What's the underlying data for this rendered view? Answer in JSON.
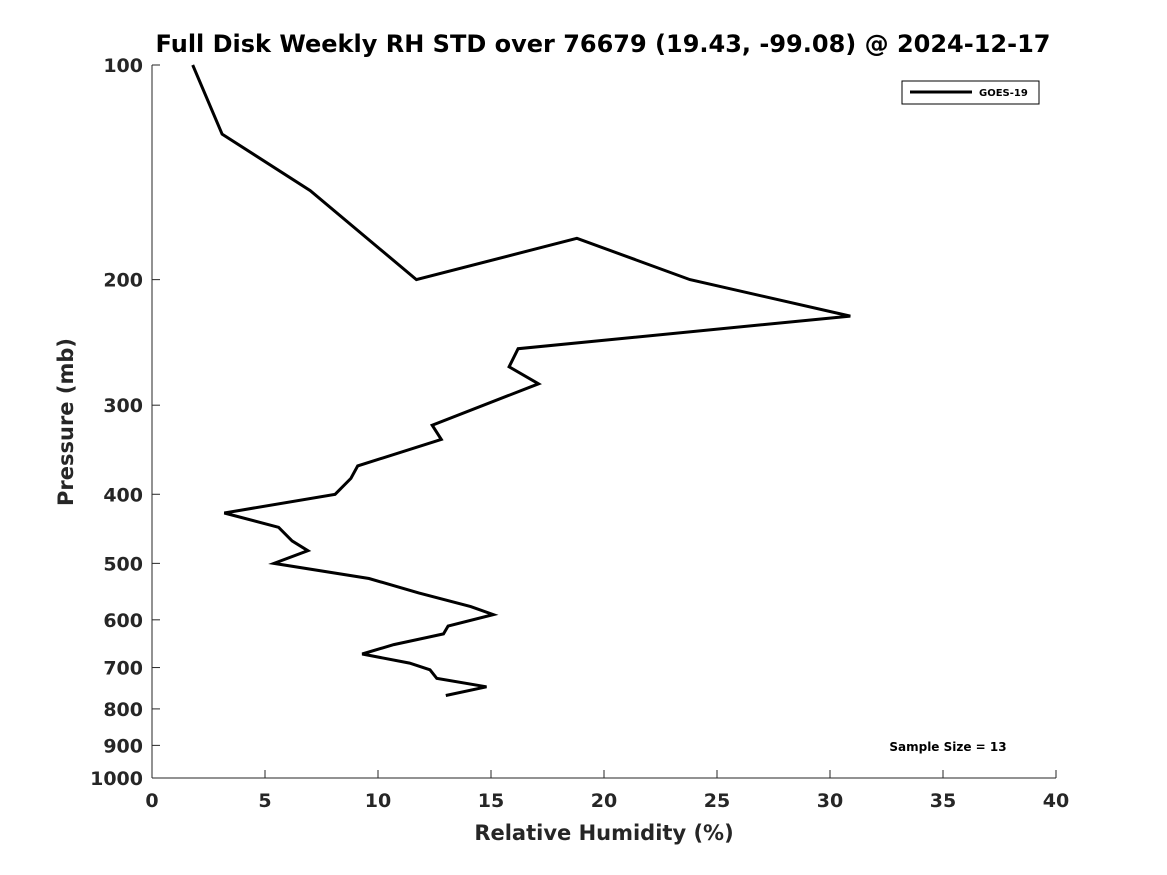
{
  "chart_data": {
    "type": "line",
    "title": "Full Disk Weekly RH STD over 76679 (19.43, -99.08) @ 2024-12-17",
    "xlabel": "Relative Humidity (%)",
    "ylabel": "Pressure (mb)",
    "xlim": [
      0,
      40
    ],
    "ylim": [
      1000,
      100
    ],
    "y_scale": "log",
    "y_reversed": true,
    "x_ticks": [
      0,
      5,
      10,
      15,
      20,
      25,
      30,
      35,
      40
    ],
    "y_ticks": [
      100,
      200,
      300,
      400,
      500,
      600,
      700,
      800,
      900,
      1000
    ],
    "grid": false,
    "legend_position": "top-right",
    "annotation": "Sample Size = 13",
    "series": [
      {
        "name": "GOES-19",
        "color": "#000000",
        "points": [
          [
            1.8,
            100
          ],
          [
            3.1,
            125
          ],
          [
            7.0,
            150
          ],
          [
            11.7,
            200
          ],
          [
            18.8,
            175
          ],
          [
            23.8,
            200
          ],
          [
            30.9,
            225
          ],
          [
            16.2,
            250
          ],
          [
            15.8,
            265
          ],
          [
            17.1,
            280
          ],
          [
            12.4,
            320
          ],
          [
            12.8,
            335
          ],
          [
            9.1,
            365
          ],
          [
            8.8,
            380
          ],
          [
            8.1,
            400
          ],
          [
            3.2,
            425
          ],
          [
            5.6,
            445
          ],
          [
            6.2,
            465
          ],
          [
            6.9,
            480
          ],
          [
            5.4,
            500
          ],
          [
            9.6,
            525
          ],
          [
            11.8,
            550
          ],
          [
            14.1,
            575
          ],
          [
            15.1,
            590
          ],
          [
            13.1,
            612
          ],
          [
            12.9,
            628
          ],
          [
            10.7,
            650
          ],
          [
            9.3,
            670
          ],
          [
            11.4,
            690
          ],
          [
            12.3,
            705
          ],
          [
            12.6,
            725
          ],
          [
            14.8,
            745
          ],
          [
            13.0,
            766
          ]
        ]
      }
    ]
  }
}
